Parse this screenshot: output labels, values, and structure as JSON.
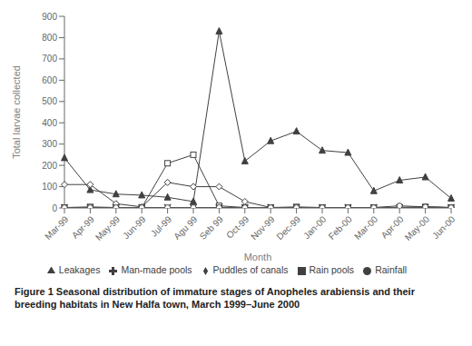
{
  "chart_data": {
    "type": "line",
    "title": "Figure 1 Seasonal distribution of immature stages of Anopheles arabiensis and their breeding habitats in New Halfa town, March 1999–June 2000",
    "x_label": "Month",
    "y_label": "Total larvae collected",
    "categories": [
      "Mar-99",
      "Apr-99",
      "May-99",
      "Jun-99",
      "Jul-99",
      "Agu 99",
      "Seb 99",
      "Oct-99",
      "Nov-99",
      "Dec-99",
      "Jan-00",
      "Feb-00",
      "Mar-00",
      "Apr-00",
      "May-00",
      "Jun-00"
    ],
    "series": [
      {
        "name": "Leakages",
        "color": "#404040",
        "marker": "triangle",
        "values": [
          235,
          85,
          65,
          60,
          50,
          30,
          830,
          220,
          315,
          360,
          270,
          260,
          80,
          130,
          145,
          45
        ]
      },
      {
        "name": "Rain pools",
        "color": "#404040",
        "marker": "square",
        "values": [
          2,
          5,
          2,
          2,
          210,
          250,
          10,
          2,
          2,
          5,
          2,
          2,
          2,
          2,
          5,
          2
        ]
      },
      {
        "name": "Puddles of canals",
        "color": "#404040",
        "marker": "diamond",
        "values": [
          110,
          110,
          20,
          5,
          120,
          100,
          100,
          30,
          2,
          2,
          2,
          2,
          2,
          2,
          5,
          2
        ]
      },
      {
        "name": "Man-made pools",
        "color": "#404040",
        "marker": "cross",
        "values": [
          2,
          2,
          2,
          2,
          2,
          2,
          2,
          2,
          2,
          2,
          2,
          2,
          2,
          2,
          2,
          2
        ]
      },
      {
        "name": "Rainfall",
        "color": "#404040",
        "marker": "circle",
        "values": [
          2,
          2,
          2,
          2,
          2,
          2,
          2,
          2,
          2,
          2,
          2,
          2,
          2,
          10,
          5,
          2
        ]
      }
    ],
    "ylim": [
      0,
      900
    ],
    "yticks": [
      0,
      100,
      200,
      300,
      400,
      500,
      600,
      700,
      800,
      900
    ],
    "grid": false,
    "legend": "bottom"
  }
}
